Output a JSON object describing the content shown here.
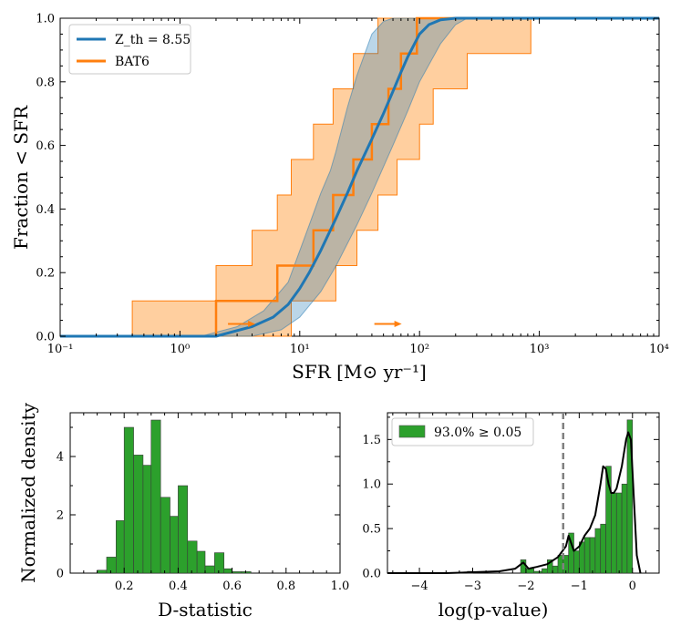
{
  "figure": {
    "colors": {
      "model": "#1f77b4",
      "model_band": "#a9cbe6",
      "bat6": "#ff7f0e",
      "bat6_band": "#ffcf9f",
      "hist": "#2ca02c",
      "kde": "#000000",
      "threshold": "#808080"
    }
  },
  "chart_data": [
    {
      "type": "line",
      "name": "cumulative-sfr",
      "xscale": "log",
      "xlim": [
        0.1,
        10000
      ],
      "ylim": [
        0,
        1
      ],
      "xlabel": "SFR [M⊙ yr⁻¹]",
      "ylabel": "Fraction < SFR",
      "x_tick_labels": [
        "10⁻¹",
        "10⁰",
        "10¹",
        "10²",
        "10³",
        "10⁴"
      ],
      "y_tick_labels": [
        "0.0",
        "0.2",
        "0.4",
        "0.6",
        "0.8",
        "1.0"
      ],
      "legend": {
        "placement": "top-left",
        "entries": [
          "Z_th = 8.55",
          "BAT6"
        ]
      },
      "series": [
        {
          "name": "Z_th = 8.55",
          "kind": "cdf_curve",
          "x": [
            2,
            4,
            6,
            8,
            10,
            12,
            15,
            20,
            25,
            30,
            40,
            50,
            60,
            70,
            80,
            100,
            120,
            150,
            200
          ],
          "y": [
            0.0,
            0.03,
            0.06,
            0.1,
            0.15,
            0.2,
            0.27,
            0.37,
            0.45,
            0.52,
            0.62,
            0.7,
            0.77,
            0.83,
            0.88,
            0.95,
            0.98,
            0.995,
            1.0
          ]
        },
        {
          "name": "Z_th band lower",
          "kind": "band_lower",
          "x": [
            4,
            7,
            10,
            15,
            20,
            30,
            40,
            60,
            80,
            100,
            150,
            200,
            250
          ],
          "y": [
            0.0,
            0.02,
            0.06,
            0.14,
            0.22,
            0.35,
            0.45,
            0.6,
            0.71,
            0.8,
            0.92,
            0.98,
            1.0
          ]
        },
        {
          "name": "Z_th band upper",
          "kind": "band_upper",
          "x": [
            1.5,
            3,
            5,
            8,
            12,
            15,
            18,
            20,
            25,
            30,
            40,
            50,
            60
          ],
          "y": [
            0.0,
            0.03,
            0.08,
            0.17,
            0.35,
            0.45,
            0.52,
            0.58,
            0.72,
            0.82,
            0.95,
            0.99,
            1.0
          ]
        },
        {
          "name": "BAT6",
          "kind": "step",
          "x": [
            2.0,
            6.5,
            13.0,
            19.0,
            28.0,
            40.0,
            55.0,
            70.0,
            95.0,
            250.0
          ],
          "y": [
            0.111,
            0.222,
            0.333,
            0.444,
            0.556,
            0.667,
            0.778,
            0.889,
            1.0,
            1.0
          ]
        },
        {
          "name": "BAT6 band lower",
          "kind": "step_lower",
          "x": [
            8.5,
            20.0,
            30.0,
            45.0,
            65.0,
            100.0,
            130.0,
            250.0,
            850.0
          ],
          "y": [
            0.111,
            0.222,
            0.333,
            0.444,
            0.556,
            0.667,
            0.778,
            0.889,
            1.0
          ]
        },
        {
          "name": "BAT6 band upper",
          "kind": "step_upper",
          "x": [
            0.4,
            2.0,
            4.0,
            6.5,
            8.5,
            13.0,
            19.0,
            28.0,
            45.0
          ],
          "y": [
            0.111,
            0.222,
            0.333,
            0.444,
            0.556,
            0.667,
            0.778,
            0.889,
            1.0
          ]
        },
        {
          "name": "BAT6 lower limits",
          "kind": "arrows",
          "x": [
            2.7,
            45.0
          ],
          "y": [
            0.03,
            0.03
          ]
        }
      ]
    },
    {
      "type": "bar",
      "name": "d-statistic-histogram",
      "xlabel": "D-statistic",
      "ylabel": "Normalized density",
      "xlim": [
        0.0,
        1.0
      ],
      "ylim": [
        0,
        5.5
      ],
      "x_tick_labels": [
        "0.2",
        "0.4",
        "0.6",
        "0.8",
        "1.0"
      ],
      "y_tick_labels": [
        "0",
        "2",
        "4"
      ],
      "bin_edges": [
        0.1,
        0.135,
        0.17,
        0.2,
        0.235,
        0.27,
        0.3,
        0.335,
        0.37,
        0.4,
        0.435,
        0.47,
        0.5,
        0.535,
        0.57,
        0.6,
        0.635,
        0.67
      ],
      "values": [
        0.1,
        0.55,
        1.8,
        5.0,
        4.05,
        3.7,
        5.25,
        2.6,
        1.95,
        3.0,
        1.1,
        0.75,
        0.25,
        0.7,
        0.15,
        0.05,
        0.05
      ]
    },
    {
      "type": "bar",
      "name": "log-p-value-histogram",
      "xlabel": "log(p-value)",
      "xlim": [
        -4.6,
        0.5
      ],
      "ylim": [
        0,
        1.8
      ],
      "x_tick_labels": [
        "−4",
        "−3",
        "−2",
        "−1",
        "0"
      ],
      "y_tick_labels": [
        "0.0",
        "0.5",
        "1.0",
        "1.5"
      ],
      "legend": {
        "placement": "top-left",
        "entries": [
          "93.0% ≥ 0.05"
        ]
      },
      "threshold_line": {
        "x": -1.301
      },
      "bin_edges": [
        -3.1,
        -3.0,
        -2.1,
        -2.0,
        -1.85,
        -1.7,
        -1.6,
        -1.5,
        -1.4,
        -1.3,
        -1.2,
        -1.1,
        -1.0,
        -0.9,
        -0.8,
        -0.7,
        -0.6,
        -0.5,
        -0.4,
        -0.3,
        -0.2,
        -0.1,
        0.0
      ],
      "values": [
        0.02,
        0.0,
        0.15,
        0.05,
        0.02,
        0.05,
        0.15,
        0.08,
        0.2,
        0.2,
        0.45,
        0.25,
        0.35,
        0.4,
        0.4,
        0.5,
        0.55,
        1.2,
        0.9,
        0.9,
        1.0,
        1.72
      ],
      "kde": {
        "x": [
          -4.6,
          -3.5,
          -3.0,
          -2.5,
          -2.2,
          -2.05,
          -1.95,
          -1.8,
          -1.6,
          -1.4,
          -1.25,
          -1.2,
          -1.1,
          -1.0,
          -0.9,
          -0.8,
          -0.7,
          -0.6,
          -0.55,
          -0.5,
          -0.45,
          -0.4,
          -0.35,
          -0.3,
          -0.2,
          -0.12,
          -0.08,
          -0.03,
          0.02,
          0.08,
          0.15
        ],
        "y": [
          0.0,
          0.0,
          0.01,
          0.02,
          0.05,
          0.12,
          0.05,
          0.07,
          0.1,
          0.18,
          0.3,
          0.42,
          0.25,
          0.3,
          0.42,
          0.5,
          0.65,
          1.0,
          1.2,
          1.17,
          1.0,
          0.9,
          0.9,
          0.95,
          1.2,
          1.5,
          1.58,
          1.5,
          0.9,
          0.2,
          0.0
        ]
      }
    }
  ]
}
